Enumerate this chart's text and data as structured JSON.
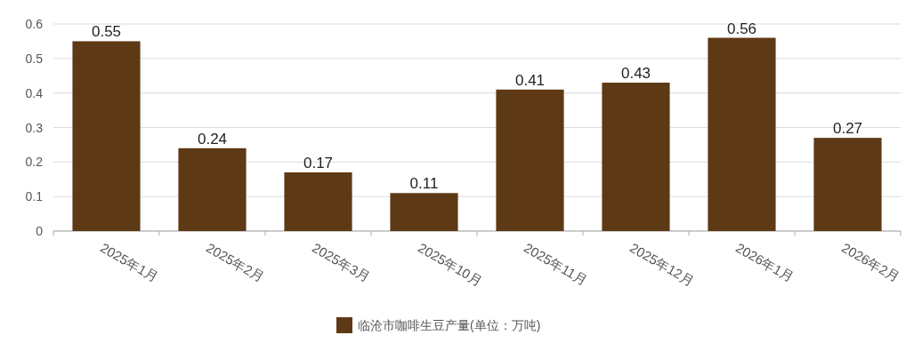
{
  "chart_data": {
    "type": "bar",
    "categories": [
      "2025年1月",
      "2025年2月",
      "2025年3月",
      "2025年10月",
      "2025年11月",
      "2025年12月",
      "2026年1月",
      "2026年2月"
    ],
    "series": [
      {
        "name": "临沧市咖啡生豆产量(单位：万吨)",
        "color": "#5e3915",
        "values": [
          0.55,
          0.24,
          0.17,
          0.11,
          0.41,
          0.43,
          0.56,
          0.27
        ]
      }
    ],
    "ylim": [
      0,
      0.6
    ],
    "yticks": [
      0,
      0.1,
      0.2,
      0.3,
      0.4,
      0.5,
      0.6
    ],
    "grid": "y",
    "data_labels": true,
    "legend": "bottom"
  }
}
